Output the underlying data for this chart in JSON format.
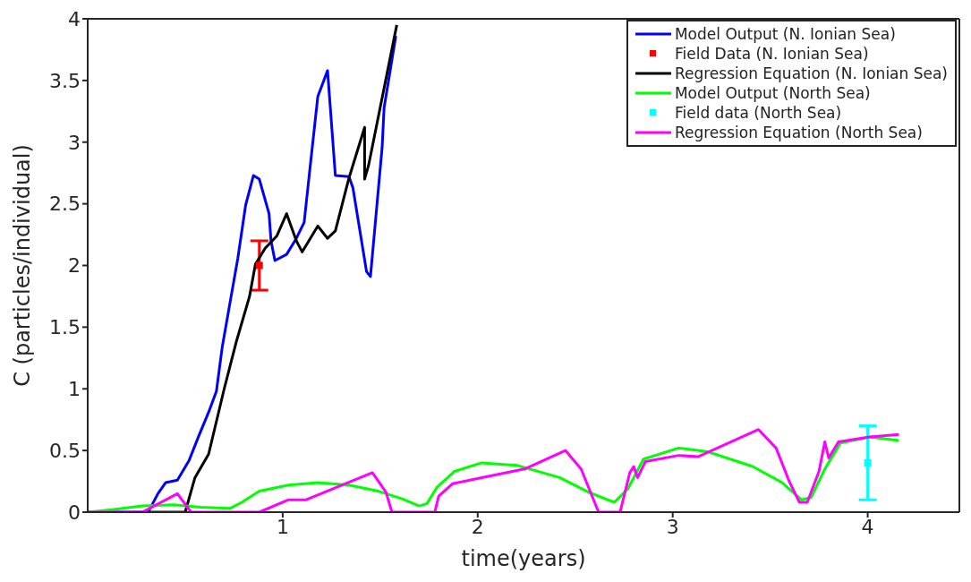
{
  "chart_data": {
    "type": "line",
    "xlabel": "time(years)",
    "ylabel": "C (particles/individual)",
    "xlim": [
      0,
      4.47
    ],
    "ylim": [
      0,
      4
    ],
    "xticks": [
      1,
      2,
      3,
      4
    ],
    "yticks": [
      0,
      0.5,
      1,
      1.5,
      2,
      2.5,
      3,
      3.5,
      4
    ],
    "legend": "top right",
    "line_style": "solid",
    "marker": "none",
    "series": [
      {
        "name": "Model Output (N. Ionian Sea)",
        "color": "#0000ff",
        "x": [
          0,
          0.31,
          0.36,
          0.4,
          0.46,
          0.52,
          0.57,
          0.62,
          0.66,
          0.69,
          0.73,
          0.77,
          0.81,
          0.85,
          0.88,
          0.93,
          0.94,
          0.96,
          1.02,
          1.07,
          1.11,
          1.14,
          1.18,
          1.23,
          1.27,
          1.34,
          1.36,
          1.43,
          1.45,
          1.51,
          1.52,
          1.58
        ],
        "values": [
          0,
          0,
          0.15,
          0.24,
          0.26,
          0.42,
          0.62,
          0.81,
          0.98,
          1.34,
          1.7,
          2.06,
          2.49,
          2.73,
          2.7,
          2.42,
          2.2,
          2.04,
          2.09,
          2.22,
          2.35,
          2.79,
          3.37,
          3.58,
          2.73,
          2.72,
          2.63,
          1.95,
          1.91,
          2.96,
          3.28,
          3.86
        ]
      },
      {
        "name": "Field Data (N. Ionian Sea)",
        "type": "scatter",
        "marker": "square",
        "color": "#ff0000",
        "x": [
          0.88
        ],
        "values": [
          2
        ],
        "errors": [
          0.2
        ]
      },
      {
        "name": "Regression Equation (N. Ionian Sea)",
        "color": "#000000",
        "x": [
          0.31,
          0.5,
          0.55,
          0.62,
          0.7,
          0.76,
          0.83,
          0.86,
          0.91,
          0.97,
          1.02,
          1.07,
          1.1,
          1.18,
          1.23,
          1.27,
          1.34,
          1.42,
          1.42,
          1.44,
          1.585
        ],
        "values": [
          0,
          0,
          0.28,
          0.47,
          1.0,
          1.37,
          1.75,
          2.01,
          2.14,
          2.24,
          2.42,
          2.2,
          2.11,
          2.32,
          2.22,
          2.28,
          2.71,
          3.12,
          2.7,
          2.81,
          3.95
        ]
      },
      {
        "name": "Model Output (North Sea)",
        "color": "#00ff00",
        "x": [
          0,
          0.125,
          0.28,
          0.44,
          0.58,
          0.73,
          0.79,
          0.88,
          1.03,
          1.18,
          1.34,
          1.49,
          1.61,
          1.7,
          1.74,
          1.79,
          1.88,
          2.02,
          2.2,
          2.42,
          2.57,
          2.7,
          2.77,
          2.85,
          3.03,
          3.18,
          3.41,
          3.56,
          3.66,
          3.71,
          3.78,
          3.86,
          4.01,
          4.16
        ],
        "values": [
          0,
          0.02,
          0.05,
          0.06,
          0.04,
          0.03,
          0.08,
          0.17,
          0.22,
          0.24,
          0.22,
          0.17,
          0.11,
          0.05,
          0.07,
          0.2,
          0.33,
          0.4,
          0.38,
          0.28,
          0.16,
          0.08,
          0.19,
          0.43,
          0.52,
          0.49,
          0.37,
          0.24,
          0.1,
          0.12,
          0.35,
          0.56,
          0.61,
          0.58
        ]
      },
      {
        "name": "Field data (North Sea)",
        "type": "scatter",
        "marker": "square",
        "color": "#00ffff",
        "x": [
          4
        ],
        "values": [
          0.4
        ],
        "errors": [
          0.3
        ]
      },
      {
        "name": "Regression Equation (North Sea)",
        "color": "#ff00ff",
        "x": [
          0,
          0.28,
          0.46,
          0.53,
          0.88,
          1.03,
          1.12,
          1.46,
          1.53,
          1.56,
          1.78,
          1.8,
          1.87,
          2.02,
          2.24,
          2.45,
          2.53,
          2.62,
          2.73,
          2.78,
          2.8,
          2.82,
          2.86,
          3.03,
          3.13,
          3.44,
          3.53,
          3.6,
          3.65,
          3.69,
          3.75,
          3.78,
          3.8,
          3.85,
          4.01,
          4.16
        ],
        "values": [
          0,
          0,
          0.15,
          0,
          0,
          0.1,
          0.1,
          0.32,
          0.16,
          0,
          0,
          0.13,
          0.23,
          0.28,
          0.35,
          0.5,
          0.35,
          0,
          0,
          0.32,
          0.37,
          0.28,
          0.41,
          0.46,
          0.45,
          0.67,
          0.52,
          0.24,
          0.08,
          0.08,
          0.33,
          0.57,
          0.44,
          0.57,
          0.61,
          0.63
        ]
      }
    ]
  }
}
